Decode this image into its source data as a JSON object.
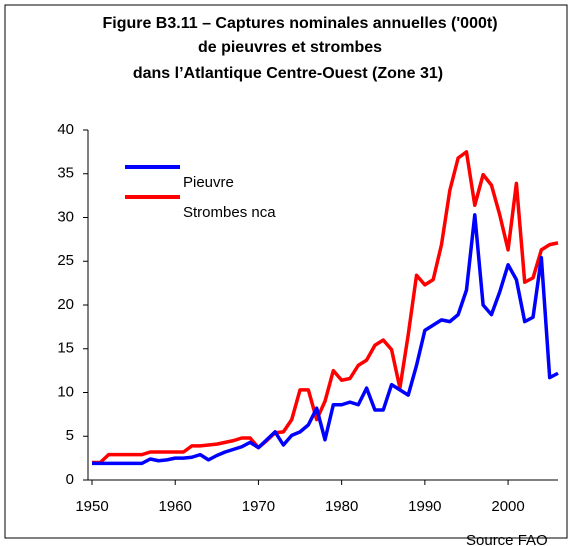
{
  "chart_data": {
    "type": "line",
    "title": [
      "Figure B3.11 – Captures nominales annuelles ('000t)",
      "de pieuvres et strombes",
      "dans l’Atlantique Centre-Ouest (Zone 31)"
    ],
    "source": "Source FAO",
    "x": [
      1950,
      1951,
      1952,
      1953,
      1954,
      1955,
      1956,
      1957,
      1958,
      1959,
      1960,
      1961,
      1962,
      1963,
      1964,
      1965,
      1966,
      1967,
      1968,
      1969,
      1970,
      1971,
      1972,
      1973,
      1974,
      1975,
      1976,
      1977,
      1978,
      1979,
      1980,
      1981,
      1982,
      1983,
      1984,
      1985,
      1986,
      1987,
      1988,
      1989,
      1990,
      1991,
      1992,
      1993,
      1994,
      1995,
      1996,
      1997,
      1998,
      1999,
      2000,
      2001,
      2002,
      2003,
      2004,
      2005,
      2006
    ],
    "series": [
      {
        "name": "Pieuvre",
        "color": "#0000ff",
        "values": [
          1.9,
          1.9,
          1.9,
          1.9,
          1.9,
          1.9,
          1.9,
          2.4,
          2.2,
          2.3,
          2.5,
          2.5,
          2.6,
          2.9,
          2.3,
          2.8,
          3.2,
          3.5,
          3.8,
          4.3,
          3.7,
          4.6,
          5.5,
          4,
          5.1,
          5.5,
          6.3,
          8.2,
          4.6,
          8.6,
          8.6,
          8.9,
          8.6,
          10.5,
          8,
          8,
          10.9,
          10.3,
          9.7,
          13.1,
          17.1,
          17.7,
          18.3,
          18.1,
          18.9,
          21.7,
          30.3,
          20,
          18.9,
          21.5,
          24.6,
          22.9,
          18.1,
          18.6,
          25.4,
          11.7,
          12.2
        ]
      },
      {
        "name": "Strombes nca",
        "color": "#ff0000",
        "values": [
          2,
          2,
          2.9,
          2.9,
          2.9,
          2.9,
          2.9,
          3.2,
          3.2,
          3.2,
          3.2,
          3.2,
          3.9,
          3.9,
          4,
          4.1,
          4.3,
          4.5,
          4.8,
          4.8,
          3.7,
          4.5,
          5.4,
          5.5,
          6.9,
          10.3,
          10.3,
          6.9,
          9,
          12.5,
          11.4,
          11.6,
          13.1,
          13.7,
          15.4,
          16,
          14.9,
          10.5,
          16.6,
          23.4,
          22.3,
          22.9,
          26.9,
          33.1,
          36.8,
          37.5,
          31.4,
          34.9,
          33.7,
          30.3,
          26.3,
          33.9,
          22.6,
          23.1,
          26.3,
          26.9,
          27.1
        ]
      }
    ],
    "xlim": [
      1950,
      2006
    ],
    "xticks": [
      1950,
      1960,
      1970,
      1980,
      1990,
      2000
    ],
    "ylim": [
      0,
      40
    ],
    "yticks": [
      0,
      5,
      10,
      15,
      20,
      25,
      30,
      35,
      40
    ],
    "legend": "upper left"
  }
}
